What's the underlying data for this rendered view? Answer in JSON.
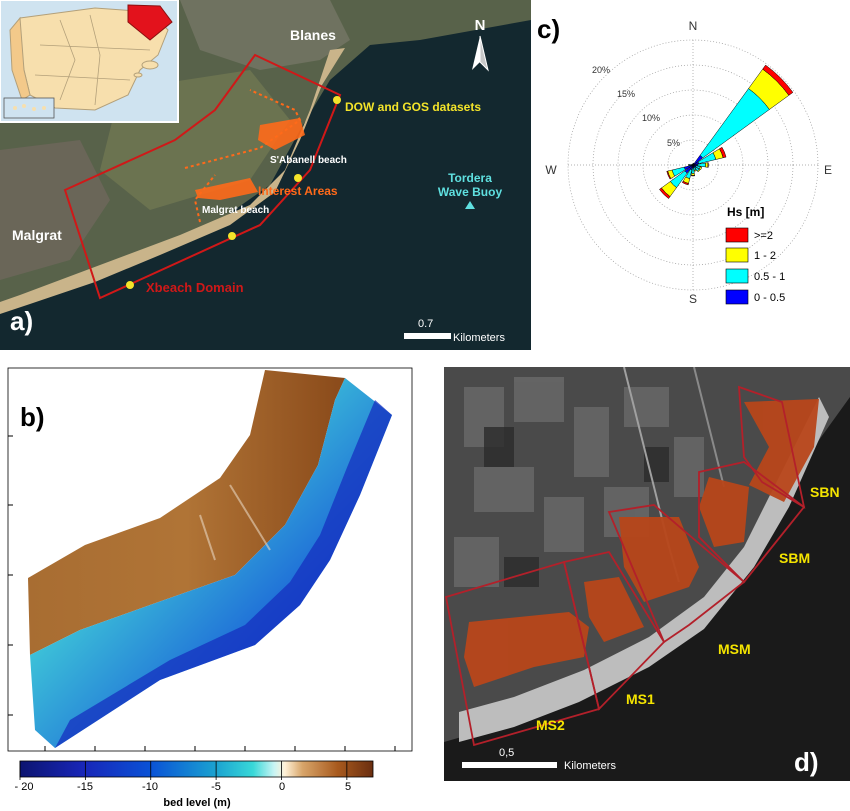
{
  "panel_a": {
    "letter": "a)",
    "places": {
      "blanes": "Blanes",
      "malgrat": "Malgrat"
    },
    "north": "N",
    "dow_gos": "DOW and GOS datasets",
    "sabanell": "S'Abanell beach",
    "interest": "Interest Areas",
    "malgrat_beach": "Malgrat beach",
    "buoy_line1": "Tordera",
    "buoy_line2": "Wave Buoy",
    "xbeach": "Xbeach Domain",
    "scale_value": "0.7",
    "scale_unit": "Kilometers",
    "colors": {
      "sea": "#13282f",
      "domain": "#d01818",
      "points": "#f4e42a",
      "interest": "#ff6a1a",
      "buoy": "#5fe0e0"
    }
  },
  "panel_c": {
    "letter": "c)",
    "compass": {
      "n": "N",
      "e": "E",
      "s": "S",
      "w": "W"
    },
    "ring_labels": [
      "5%",
      "10%",
      "15%",
      "20%"
    ],
    "legend_title": "Hs [m]",
    "legend": [
      {
        "label": ">=2",
        "color": "#ff0000"
      },
      {
        "label": "1 - 2",
        "color": "#ffff00"
      },
      {
        "label": "0.5 - 1",
        "color": "#00ffff"
      },
      {
        "label": "0 - 0.5",
        "color": "#0000ff"
      }
    ]
  },
  "chart_data": {
    "type": "rose",
    "title": "Hs [m]",
    "sectors_deg": [
      0,
      22.5,
      45,
      67.5,
      90,
      112.5,
      135,
      157.5,
      180,
      202.5,
      225,
      247.5,
      270,
      292.5,
      315,
      337.5
    ],
    "series": [
      {
        "name": "0 - 0.5",
        "values": [
          0.2,
          0.3,
          2.4,
          1.2,
          0.9,
          0.6,
          0.7,
          0.5,
          0.6,
          1.0,
          2.0,
          1.8,
          0.5,
          0.2,
          0.1,
          0.1
        ]
      },
      {
        "name": "0.5 - 1",
        "values": [
          0.1,
          0.1,
          16.5,
          3.5,
          1.6,
          0.9,
          0.8,
          0.6,
          1.1,
          1.8,
          3.6,
          2.5,
          0.3,
          0.1,
          0.1,
          0.1
        ]
      },
      {
        "name": "1 - 2",
        "values": [
          0,
          0,
          4.8,
          1.5,
          0.5,
          0.3,
          0.2,
          0.2,
          0.4,
          1.0,
          2.2,
          0.9,
          0.1,
          0,
          0,
          0
        ]
      },
      {
        "name": ">=2",
        "values": [
          0,
          0,
          1.0,
          0.6,
          0.1,
          0,
          0,
          0,
          0.1,
          0.3,
          0.5,
          0.2,
          0,
          0,
          0,
          0
        ]
      }
    ],
    "rings": [
      5,
      10,
      15,
      20
    ],
    "rmax": 25
  },
  "panel_b": {
    "letter": "b)",
    "colorbar_ticks": [
      "- 20",
      "-15",
      "-10",
      "-5",
      "0",
      "5"
    ],
    "colorbar_label": "bed level (m)",
    "colorbar_range": [
      -20,
      7
    ]
  },
  "panel_d": {
    "letter": "d)",
    "zones": [
      "SBN",
      "SBM",
      "MSM",
      "MS1",
      "MS2"
    ],
    "scale_value": "0,5",
    "scale_unit": "Kilometers",
    "colors": {
      "zone_outline": "#b3202a",
      "zone_label": "#f4e400",
      "buildings": "#b8461a"
    }
  }
}
